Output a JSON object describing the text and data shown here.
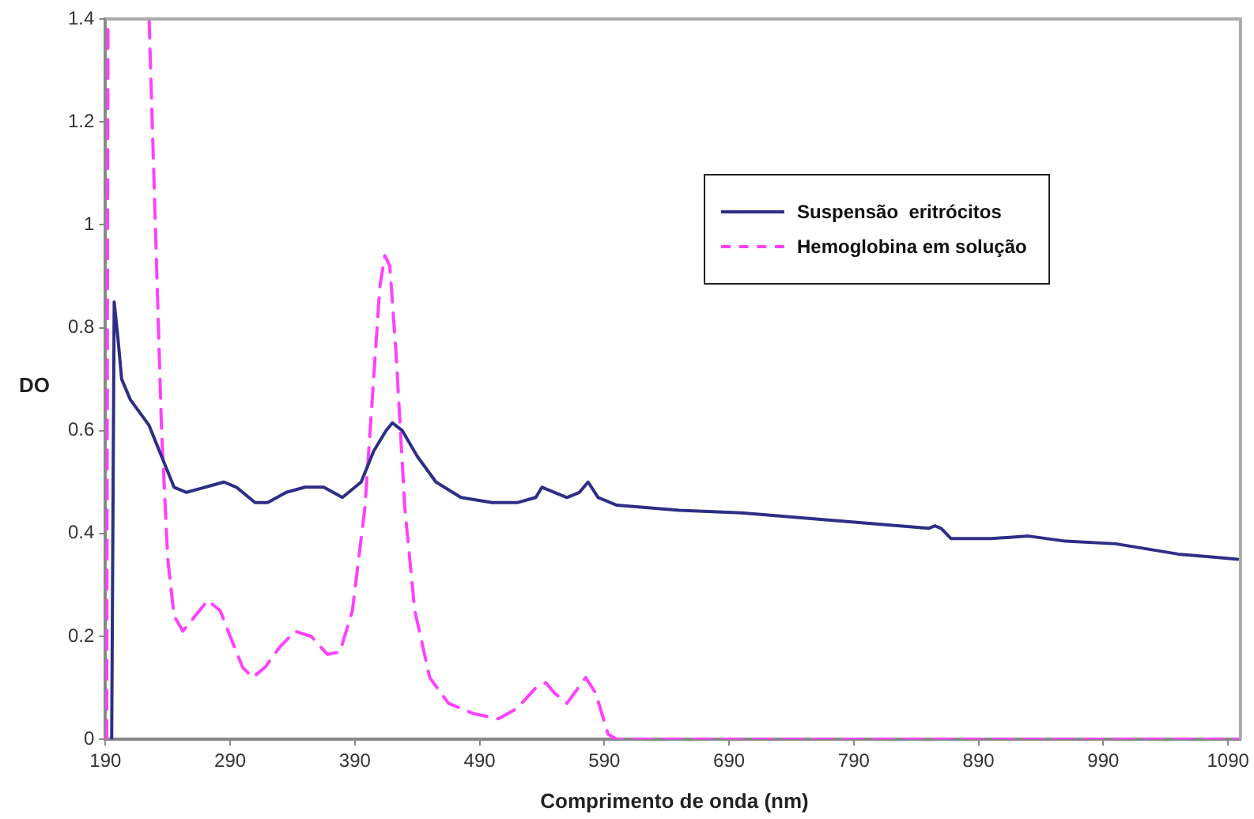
{
  "chart_data": {
    "type": "line",
    "xlabel": "Comprimento de onda (nm)",
    "ylabel": "DO",
    "xlim": [
      190,
      1100
    ],
    "xticks": [
      190,
      290,
      390,
      490,
      590,
      690,
      790,
      890,
      990,
      1090
    ],
    "ylim": [
      0,
      1.4
    ],
    "yticks": [
      0,
      0.2,
      0.4,
      0.6,
      0.8,
      1,
      1.2,
      1.4
    ],
    "grid": false,
    "legend": "top right",
    "marker": "none",
    "series": [
      {
        "name": "Suspensão  eritrócitos",
        "color": "#2e2e86",
        "line_style": "solid",
        "x": [
          195,
          197,
          200,
          203,
          210,
          225,
          235,
          245,
          255,
          270,
          285,
          295,
          310,
          320,
          335,
          350,
          365,
          380,
          395,
          405,
          415,
          420,
          428,
          440,
          455,
          475,
          500,
          520,
          535,
          540,
          550,
          560,
          570,
          577,
          585,
          600,
          650,
          700,
          750,
          800,
          850,
          855,
          860,
          868,
          900,
          930,
          960,
          1000,
          1050,
          1098
        ],
        "values": [
          0,
          0.85,
          0.78,
          0.7,
          0.66,
          0.61,
          0.55,
          0.49,
          0.48,
          0.49,
          0.5,
          0.49,
          0.46,
          0.46,
          0.48,
          0.49,
          0.49,
          0.47,
          0.5,
          0.56,
          0.6,
          0.615,
          0.6,
          0.55,
          0.5,
          0.47,
          0.46,
          0.46,
          0.47,
          0.49,
          0.48,
          0.47,
          0.48,
          0.5,
          0.47,
          0.455,
          0.445,
          0.44,
          0.43,
          0.42,
          0.41,
          0.415,
          0.41,
          0.39,
          0.39,
          0.395,
          0.385,
          0.38,
          0.36,
          0.35
        ]
      },
      {
        "name": "Hemoglobina em solução",
        "color": "#ff40ff",
        "line_style": "dashed",
        "x": [
          191,
          192,
          193,
          225,
          230,
          235,
          240,
          245,
          252,
          262,
          272,
          282,
          290,
          300,
          308,
          318,
          330,
          342,
          355,
          368,
          378,
          388,
          398,
          405,
          410,
          414,
          418,
          423,
          430,
          438,
          450,
          465,
          485,
          505,
          520,
          535,
          543,
          550,
          560,
          575,
          583,
          593,
          600,
          700,
          800,
          900,
          1000,
          1098
        ],
        "values": [
          0,
          1.4,
          null,
          1.4,
          1.0,
          0.6,
          0.35,
          0.24,
          0.21,
          0.24,
          0.27,
          0.25,
          0.2,
          0.14,
          0.12,
          0.14,
          0.18,
          0.21,
          0.2,
          0.165,
          0.17,
          0.25,
          0.45,
          0.7,
          0.88,
          0.94,
          0.92,
          0.75,
          0.45,
          0.25,
          0.12,
          0.07,
          0.05,
          0.04,
          0.06,
          0.1,
          0.11,
          0.09,
          0.07,
          0.12,
          0.09,
          0.01,
          0,
          0,
          0,
          0,
          0,
          0
        ]
      }
    ]
  }
}
